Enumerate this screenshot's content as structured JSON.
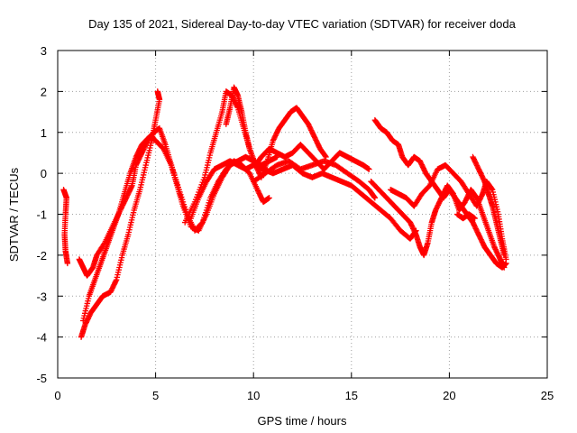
{
  "chart_data": {
    "type": "scatter",
    "title": "Day 135 of 2021, Sidereal Day-to-day VTEC variation (SDTVAR) for receiver doda",
    "xlabel": "GPS time / hours",
    "ylabel": "SDTVAR / TECUs",
    "xlim": [
      0,
      25
    ],
    "ylim": [
      -5,
      3
    ],
    "xticks": [
      0,
      5,
      10,
      15,
      20,
      25
    ],
    "yticks": [
      -5,
      -4,
      -3,
      -2,
      -1,
      0,
      1,
      2,
      3
    ],
    "grid": true,
    "marker": "+",
    "color": "#ff0000",
    "series": [
      {
        "name": "trace-1",
        "points": [
          [
            0.3,
            -0.4
          ],
          [
            0.45,
            -0.6
          ],
          [
            0.4,
            -1.0
          ],
          [
            0.35,
            -1.5
          ],
          [
            0.4,
            -1.9
          ],
          [
            0.5,
            -2.2
          ]
        ]
      },
      {
        "name": "trace-2",
        "points": [
          [
            1.1,
            -2.1
          ],
          [
            1.3,
            -2.3
          ],
          [
            1.5,
            -2.5
          ],
          [
            1.8,
            -2.3
          ],
          [
            2.0,
            -2.0
          ],
          [
            2.4,
            -1.7
          ],
          [
            2.8,
            -1.3
          ],
          [
            3.2,
            -0.9
          ],
          [
            3.5,
            -0.6
          ],
          [
            3.8,
            -0.3
          ],
          [
            4.0,
            0.2
          ],
          [
            4.3,
            0.5
          ],
          [
            4.6,
            0.8
          ],
          [
            4.9,
            1.0
          ],
          [
            5.2,
            1.1
          ],
          [
            5.5,
            0.7
          ],
          [
            5.8,
            0.2
          ],
          [
            6.2,
            -0.4
          ],
          [
            6.6,
            -1.0
          ],
          [
            7.0,
            -1.4
          ],
          [
            7.4,
            -1.2
          ],
          [
            7.8,
            -0.6
          ],
          [
            8.2,
            -0.2
          ],
          [
            8.6,
            0.1
          ],
          [
            9.0,
            0.3
          ],
          [
            9.4,
            0.2
          ],
          [
            9.8,
            0.0
          ],
          [
            10.2,
            -0.4
          ],
          [
            10.5,
            -0.7
          ],
          [
            10.8,
            -0.6
          ]
        ]
      },
      {
        "name": "trace-3",
        "points": [
          [
            1.2,
            -4.0
          ],
          [
            1.4,
            -3.7
          ],
          [
            1.7,
            -3.4
          ],
          [
            2.0,
            -3.2
          ],
          [
            2.3,
            -3.0
          ],
          [
            2.7,
            -2.9
          ],
          [
            3.0,
            -2.6
          ],
          [
            3.3,
            -2.0
          ],
          [
            3.6,
            -1.5
          ],
          [
            3.9,
            -0.9
          ],
          [
            4.2,
            -0.4
          ],
          [
            4.5,
            0.2
          ],
          [
            4.8,
            0.8
          ],
          [
            5.0,
            1.3
          ],
          [
            5.2,
            1.8
          ],
          [
            5.1,
            2.0
          ]
        ]
      },
      {
        "name": "trace-4",
        "points": [
          [
            1.3,
            -3.6
          ],
          [
            1.6,
            -3.0
          ],
          [
            1.9,
            -2.6
          ],
          [
            2.2,
            -2.2
          ],
          [
            2.5,
            -1.8
          ],
          [
            2.8,
            -1.4
          ],
          [
            3.1,
            -1.0
          ],
          [
            3.4,
            -0.5
          ],
          [
            3.7,
            0.0
          ],
          [
            4.0,
            0.4
          ],
          [
            4.3,
            0.7
          ],
          [
            4.7,
            0.9
          ],
          [
            5.0,
            0.8
          ],
          [
            5.4,
            0.6
          ],
          [
            5.8,
            0.2
          ],
          [
            6.1,
            -0.3
          ],
          [
            6.4,
            -0.8
          ],
          [
            6.8,
            -1.3
          ],
          [
            7.2,
            -1.4
          ],
          [
            7.6,
            -1.0
          ],
          [
            8.0,
            -0.5
          ],
          [
            8.4,
            -0.1
          ],
          [
            8.8,
            0.2
          ],
          [
            9.2,
            0.3
          ],
          [
            9.6,
            0.4
          ],
          [
            10.0,
            0.3
          ],
          [
            10.4,
            0.2
          ],
          [
            10.8,
            0.3
          ],
          [
            11.2,
            0.4
          ]
        ]
      },
      {
        "name": "trace-5",
        "points": [
          [
            6.5,
            -1.2
          ],
          [
            7.0,
            -0.7
          ],
          [
            7.5,
            -0.1
          ],
          [
            7.8,
            0.5
          ],
          [
            8.1,
            1.0
          ],
          [
            8.4,
            1.5
          ],
          [
            8.6,
            2.0
          ],
          [
            8.9,
            1.9
          ],
          [
            9.2,
            1.6
          ],
          [
            9.5,
            1.1
          ],
          [
            9.8,
            0.6
          ],
          [
            10.1,
            0.2
          ],
          [
            10.4,
            -0.1
          ],
          [
            10.7,
            0.3
          ],
          [
            11.0,
            0.8
          ],
          [
            11.3,
            1.1
          ],
          [
            11.6,
            1.3
          ],
          [
            11.9,
            1.5
          ],
          [
            12.2,
            1.6
          ],
          [
            12.5,
            1.4
          ],
          [
            12.8,
            1.2
          ],
          [
            13.1,
            0.9
          ],
          [
            13.4,
            0.6
          ],
          [
            13.7,
            0.4
          ]
        ]
      },
      {
        "name": "trace-6",
        "points": [
          [
            8.6,
            1.2
          ],
          [
            8.8,
            1.6
          ],
          [
            9.0,
            2.1
          ],
          [
            9.2,
            1.9
          ],
          [
            9.4,
            1.5
          ],
          [
            9.6,
            1.0
          ],
          [
            9.8,
            0.6
          ],
          [
            10.1,
            0.2
          ],
          [
            10.4,
            0.4
          ],
          [
            10.8,
            0.6
          ],
          [
            11.2,
            0.5
          ],
          [
            11.6,
            0.4
          ],
          [
            12.0,
            0.5
          ],
          [
            12.4,
            0.7
          ],
          [
            12.8,
            0.5
          ],
          [
            13.2,
            0.3
          ],
          [
            13.6,
            0.1
          ],
          [
            14.0,
            0.3
          ],
          [
            14.4,
            0.5
          ],
          [
            14.8,
            0.4
          ],
          [
            15.2,
            0.3
          ],
          [
            15.6,
            0.2
          ],
          [
            15.9,
            0.1
          ]
        ]
      },
      {
        "name": "trace-7",
        "points": [
          [
            6.8,
            -1.1
          ],
          [
            7.2,
            -0.6
          ],
          [
            7.6,
            -0.2
          ],
          [
            8.0,
            0.1
          ],
          [
            8.4,
            0.2
          ],
          [
            8.8,
            0.3
          ],
          [
            9.2,
            0.2
          ],
          [
            9.6,
            0.1
          ],
          [
            10.0,
            0.2
          ],
          [
            10.5,
            0.1
          ],
          [
            11.0,
            0.0
          ],
          [
            11.5,
            0.1
          ],
          [
            12.0,
            0.2
          ],
          [
            12.5,
            0.0
          ],
          [
            13.0,
            -0.1
          ],
          [
            13.5,
            0.0
          ],
          [
            14.0,
            -0.1
          ],
          [
            14.5,
            -0.2
          ],
          [
            15.0,
            -0.3
          ],
          [
            15.5,
            -0.5
          ],
          [
            16.0,
            -0.7
          ],
          [
            16.5,
            -0.9
          ],
          [
            17.0,
            -1.1
          ],
          [
            17.5,
            -1.4
          ],
          [
            18.0,
            -1.6
          ],
          [
            18.3,
            -1.4
          ]
        ]
      },
      {
        "name": "trace-8",
        "points": [
          [
            10.0,
            -0.2
          ],
          [
            10.6,
            0.0
          ],
          [
            11.2,
            0.2
          ],
          [
            11.8,
            0.3
          ],
          [
            12.4,
            0.1
          ],
          [
            13.0,
            0.2
          ],
          [
            13.6,
            0.3
          ],
          [
            14.2,
            0.2
          ],
          [
            14.8,
            0.0
          ],
          [
            15.4,
            -0.2
          ],
          [
            15.9,
            -0.4
          ],
          [
            16.2,
            -0.6
          ]
        ]
      },
      {
        "name": "trace-9",
        "points": [
          [
            16.2,
            1.3
          ],
          [
            16.5,
            1.1
          ],
          [
            16.8,
            1.0
          ],
          [
            17.1,
            0.8
          ],
          [
            17.4,
            0.7
          ],
          [
            17.6,
            0.4
          ],
          [
            17.9,
            0.2
          ],
          [
            18.2,
            0.4
          ],
          [
            18.5,
            0.3
          ],
          [
            18.8,
            0.0
          ],
          [
            19.1,
            -0.2
          ],
          [
            19.4,
            -0.4
          ],
          [
            19.7,
            -0.6
          ],
          [
            20.0,
            -0.4
          ],
          [
            20.3,
            -0.6
          ],
          [
            20.6,
            -0.8
          ],
          [
            20.9,
            -1.0
          ],
          [
            21.2,
            -1.2
          ],
          [
            21.5,
            -1.5
          ],
          [
            21.8,
            -1.8
          ],
          [
            22.1,
            -2.0
          ],
          [
            22.4,
            -2.2
          ],
          [
            22.7,
            -2.3
          ],
          [
            22.9,
            -2.2
          ]
        ]
      },
      {
        "name": "trace-10",
        "points": [
          [
            16.0,
            -0.2
          ],
          [
            16.4,
            -0.4
          ],
          [
            16.8,
            -0.6
          ],
          [
            17.2,
            -0.8
          ],
          [
            17.6,
            -1.0
          ],
          [
            18.0,
            -1.2
          ],
          [
            18.3,
            -1.5
          ],
          [
            18.5,
            -1.8
          ],
          [
            18.7,
            -2.0
          ],
          [
            18.9,
            -1.7
          ],
          [
            19.1,
            -1.2
          ],
          [
            19.3,
            -0.9
          ],
          [
            19.6,
            -0.6
          ],
          [
            19.9,
            -0.3
          ],
          [
            20.2,
            -0.5
          ],
          [
            20.5,
            -0.9
          ],
          [
            20.8,
            -0.7
          ],
          [
            21.1,
            -0.4
          ],
          [
            21.4,
            -0.6
          ],
          [
            21.7,
            -1.0
          ],
          [
            22.0,
            -1.4
          ],
          [
            22.3,
            -1.8
          ],
          [
            22.6,
            -2.1
          ],
          [
            22.8,
            -2.3
          ]
        ]
      },
      {
        "name": "trace-11",
        "points": [
          [
            17.0,
            -0.4
          ],
          [
            17.4,
            -0.5
          ],
          [
            17.8,
            -0.6
          ],
          [
            18.2,
            -0.8
          ],
          [
            18.6,
            -0.5
          ],
          [
            19.0,
            -0.3
          ],
          [
            19.4,
            0.1
          ],
          [
            19.8,
            0.2
          ],
          [
            20.2,
            0.0
          ],
          [
            20.6,
            -0.2
          ],
          [
            21.0,
            -0.5
          ],
          [
            21.4,
            -0.8
          ],
          [
            21.7,
            -0.5
          ],
          [
            21.9,
            -0.2
          ],
          [
            22.2,
            -0.4
          ],
          [
            22.5,
            -1.0
          ],
          [
            22.7,
            -1.6
          ],
          [
            22.9,
            -2.1
          ]
        ]
      },
      {
        "name": "trace-12",
        "points": [
          [
            21.2,
            0.4
          ],
          [
            21.5,
            0.1
          ],
          [
            21.8,
            -0.2
          ],
          [
            22.0,
            -0.5
          ],
          [
            22.2,
            -0.8
          ],
          [
            22.4,
            -1.2
          ],
          [
            22.6,
            -1.6
          ],
          [
            22.8,
            -2.0
          ]
        ]
      },
      {
        "name": "trace-13",
        "points": [
          [
            20.4,
            -1.0
          ],
          [
            20.7,
            -1.1
          ],
          [
            21.0,
            -1.0
          ],
          [
            21.3,
            -1.1
          ]
        ]
      }
    ]
  }
}
